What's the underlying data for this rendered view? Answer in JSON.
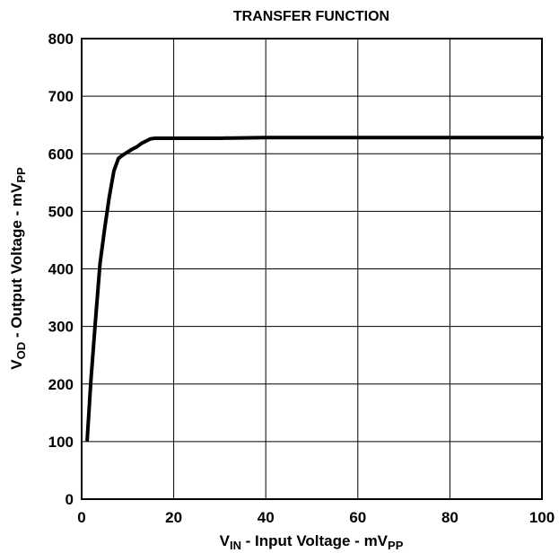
{
  "chart_data": {
    "type": "line",
    "title": "TRANSFER FUNCTION",
    "xlabel": {
      "main": "V",
      "sub": "IN",
      "middle": " - Input Voltage - mV",
      "unit_sub": "PP"
    },
    "ylabel": {
      "main": "V",
      "sub": "OD",
      "middle": " - Output Voltage - mV",
      "unit_sub": "PP"
    },
    "xlim": [
      0,
      100
    ],
    "ylim": [
      0,
      800
    ],
    "x_ticks": [
      0,
      20,
      40,
      60,
      80,
      100
    ],
    "y_ticks": [
      0,
      100,
      200,
      300,
      400,
      500,
      600,
      700,
      800
    ],
    "grid": true,
    "series": [
      {
        "x": [
          1.2,
          2,
          3,
          4,
          5,
          6,
          7,
          8,
          9,
          10,
          11,
          12,
          13,
          14,
          15,
          16,
          20,
          30,
          40,
          50,
          60,
          70,
          80,
          90,
          100
        ],
        "y": [
          103,
          205,
          310,
          410,
          470,
          525,
          570,
          592,
          598,
          603,
          608,
          612,
          618,
          622,
          626,
          627,
          627,
          627,
          628,
          628,
          628,
          628,
          628,
          628,
          628
        ],
        "color": "#000000"
      }
    ]
  }
}
